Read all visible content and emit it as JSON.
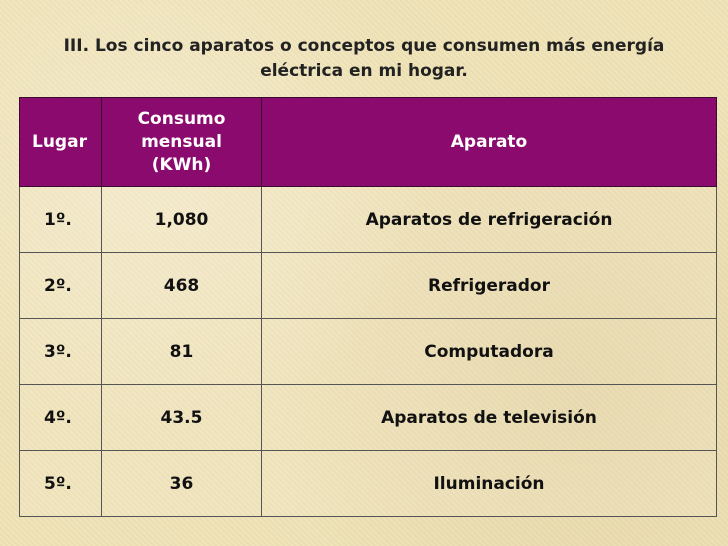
{
  "title": {
    "line1": "III. Los cinco aparatos o conceptos que consumen más energía",
    "line2": "eléctrica en mi hogar."
  },
  "table": {
    "headers": {
      "lugar": "Lugar",
      "consumo_line1": "Consumo",
      "consumo_line2": "mensual",
      "consumo_line3": "(KWh)",
      "aparato": "Aparato"
    },
    "rows": [
      {
        "lugar": "1º.",
        "consumo": "1,080",
        "aparato": "Aparatos de refrigeración"
      },
      {
        "lugar": "2º.",
        "consumo": "468",
        "aparato": "Refrigerador"
      },
      {
        "lugar": "3º.",
        "consumo": "81",
        "aparato": "Computadora"
      },
      {
        "lugar": "4º.",
        "consumo": "43.5",
        "aparato": "Aparatos de televisión"
      },
      {
        "lugar": "5º.",
        "consumo": "36",
        "aparato": "Iluminación"
      }
    ]
  },
  "colors": {
    "header_background": "#8b0a6e",
    "header_text": "#ffffff",
    "page_background": "#efe3b8"
  }
}
